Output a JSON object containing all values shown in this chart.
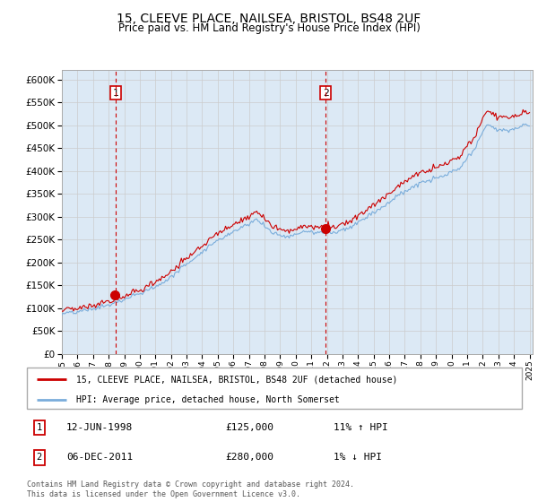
{
  "title": "15, CLEEVE PLACE, NAILSEA, BRISTOL, BS48 2UF",
  "subtitle": "Price paid vs. HM Land Registry's House Price Index (HPI)",
  "legend_line1": "15, CLEEVE PLACE, NAILSEA, BRISTOL, BS48 2UF (detached house)",
  "legend_line2": "HPI: Average price, detached house, North Somerset",
  "transaction1_date": "12-JUN-1998",
  "transaction1_price": "£125,000",
  "transaction1_hpi": "11% ↑ HPI",
  "transaction2_date": "06-DEC-2011",
  "transaction2_price": "£280,000",
  "transaction2_hpi": "1% ↓ HPI",
  "footer": "Contains HM Land Registry data © Crown copyright and database right 2024.\nThis data is licensed under the Open Government Licence v3.0.",
  "bg_color": "#dce9f5",
  "red_line_color": "#cc0000",
  "blue_line_color": "#7aaddb",
  "dashed_vline_color": "#cc0000",
  "ylim": [
    0,
    620000
  ],
  "yticks": [
    0,
    50000,
    100000,
    150000,
    200000,
    250000,
    300000,
    350000,
    400000,
    450000,
    500000,
    550000,
    600000
  ],
  "start_year": 1995,
  "end_year": 2025,
  "transaction1_year": 1998.45,
  "transaction2_year": 2011.92,
  "transaction1_price_val": 125000,
  "transaction2_price_val": 280000
}
